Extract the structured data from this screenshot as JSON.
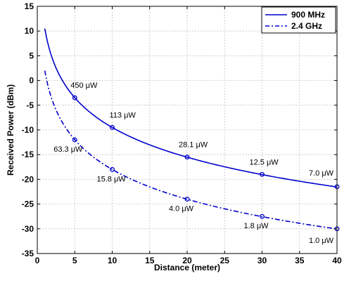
{
  "chart_data": {
    "type": "line",
    "xlabel": "Distance (meter)",
    "ylabel": "Received Power (dBm)",
    "xlim": [
      0,
      40
    ],
    "ylim": [
      -35,
      15
    ],
    "xticks": [
      0,
      5,
      10,
      15,
      20,
      25,
      30,
      35,
      40
    ],
    "yticks": [
      -35,
      -30,
      -25,
      -20,
      -15,
      -10,
      -5,
      0,
      5,
      10,
      15
    ],
    "grid": true,
    "legend_position": "top-right",
    "series": [
      {
        "name": "900 MHz",
        "color": "#0000cc",
        "line_style": "solid",
        "curve": {
          "start_x": 1,
          "end_x": 40,
          "y_at_1m": 10.5,
          "slope_db_per_decade": -20
        },
        "marked_points": [
          {
            "x": 5,
            "y": -3.5,
            "label": "450 μW"
          },
          {
            "x": 10,
            "y": -9.5,
            "label": "113 μW"
          },
          {
            "x": 20,
            "y": -15.5,
            "label": "28.1 μW"
          },
          {
            "x": 30,
            "y": -19.0,
            "label": "12.5 μW"
          },
          {
            "x": 40,
            "y": -21.5,
            "label": "7.0 μW"
          }
        ]
      },
      {
        "name": "2.4 GHz",
        "color": "#0000cc",
        "line_style": "dash-dot",
        "curve": {
          "start_x": 1,
          "end_x": 40,
          "y_at_1m": 2.0,
          "slope_db_per_decade": -20
        },
        "marked_points": [
          {
            "x": 5,
            "y": -12.0,
            "label": "63.3 μW"
          },
          {
            "x": 10,
            "y": -18.0,
            "label": "15.8 μW"
          },
          {
            "x": 20,
            "y": -24.0,
            "label": "4.0 μW"
          },
          {
            "x": 30,
            "y": -27.5,
            "label": "1.8 μW"
          },
          {
            "x": 40,
            "y": -30.0,
            "label": "1.0 μW"
          }
        ]
      }
    ]
  }
}
